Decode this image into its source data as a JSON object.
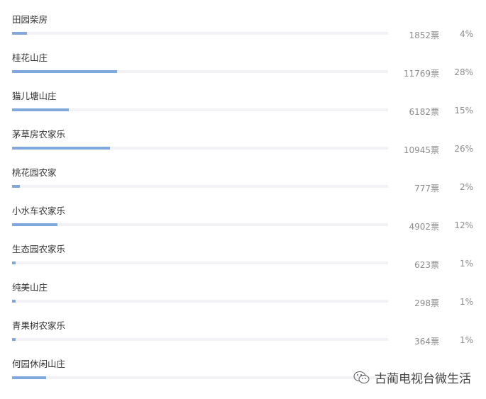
{
  "colors": {
    "bar_fill": "#7fa8dc",
    "bar_track": "#f2f2f6"
  },
  "items": [
    {
      "name": "田园柴房",
      "votes": "1852票",
      "percent": "4%",
      "fill": 4
    },
    {
      "name": "桂花山庄",
      "votes": "11769票",
      "percent": "28%",
      "fill": 28
    },
    {
      "name": "猫儿塘山庄",
      "votes": "6182票",
      "percent": "15%",
      "fill": 15
    },
    {
      "name": "茅草房农家乐",
      "votes": "10945票",
      "percent": "26%",
      "fill": 26
    },
    {
      "name": "桃花园农家",
      "votes": "777票",
      "percent": "2%",
      "fill": 2
    },
    {
      "name": "小水车农家乐",
      "votes": "4902票",
      "percent": "12%",
      "fill": 12
    },
    {
      "name": "生态园农家乐",
      "votes": "623票",
      "percent": "1%",
      "fill": 1
    },
    {
      "name": "纯美山庄",
      "votes": "298票",
      "percent": "1%",
      "fill": 1
    },
    {
      "name": "青果树农家乐",
      "votes": "364票",
      "percent": "1%",
      "fill": 1
    },
    {
      "name": "何园休闲山庄",
      "fill": 9
    }
  ],
  "watermark": {
    "icon": "wechat-icon",
    "text": "古蔺电视台微生活"
  }
}
